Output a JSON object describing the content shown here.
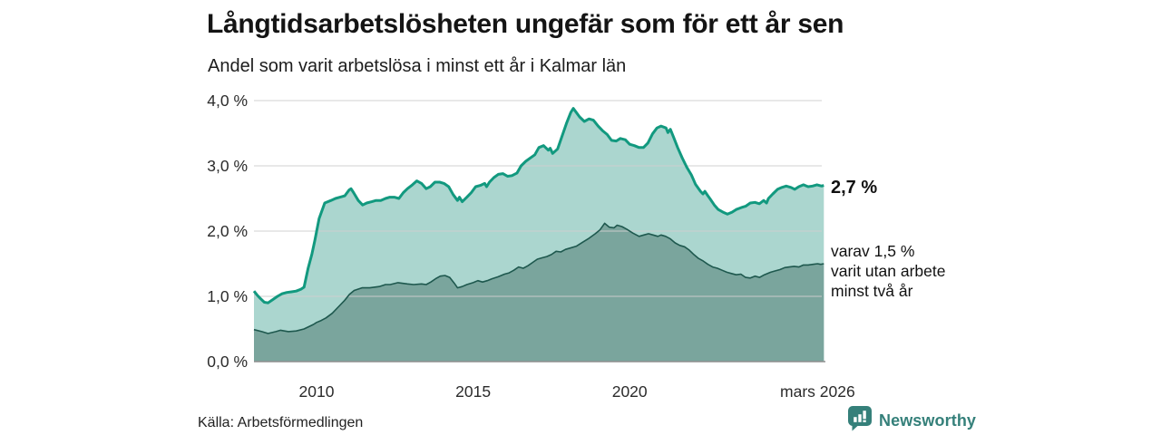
{
  "header": {
    "title": "Långtidsarbetslösheten ungefär som för ett år sen",
    "subtitle": "Andel som varit arbetslösa i minst ett år i Kalmar län"
  },
  "chart_data": {
    "type": "area",
    "unit": "%",
    "x_domain": [
      2008.0,
      2026.25
    ],
    "y_domain": [
      0,
      4
    ],
    "grid": true,
    "y_ticks": [
      {
        "v": 0,
        "label": "0,0 %"
      },
      {
        "v": 1,
        "label": "1,0 %"
      },
      {
        "v": 2,
        "label": "2,0 %"
      },
      {
        "v": 3,
        "label": "3,0 %"
      },
      {
        "v": 4,
        "label": "4,0 %"
      }
    ],
    "x_ticks": [
      {
        "x": 2010.0,
        "label": "2010"
      },
      {
        "x": 2015.0,
        "label": "2015"
      },
      {
        "x": 2020.0,
        "label": "2020"
      },
      {
        "x": 2026.0,
        "label": "mars 2026"
      }
    ],
    "series": [
      {
        "name": "Andel som varit arbetslösa i minst ett år",
        "line_color": "#12997f",
        "fill_color": "#abd6cf",
        "line_width": 3,
        "last_value_label": "2,7 %",
        "points": [
          [
            2008.0,
            1.08
          ],
          [
            2008.1,
            1.02
          ],
          [
            2008.2,
            0.97
          ],
          [
            2008.33,
            0.91
          ],
          [
            2008.45,
            0.9
          ],
          [
            2008.6,
            0.95
          ],
          [
            2008.75,
            1.0
          ],
          [
            2008.9,
            1.04
          ],
          [
            2009.05,
            1.06
          ],
          [
            2009.2,
            1.07
          ],
          [
            2009.35,
            1.08
          ],
          [
            2009.5,
            1.11
          ],
          [
            2009.6,
            1.14
          ],
          [
            2009.73,
            1.43
          ],
          [
            2009.85,
            1.65
          ],
          [
            2009.94,
            1.85
          ],
          [
            2010.08,
            2.19
          ],
          [
            2010.26,
            2.43
          ],
          [
            2010.46,
            2.47
          ],
          [
            2010.6,
            2.5
          ],
          [
            2010.75,
            2.52
          ],
          [
            2010.9,
            2.54
          ],
          [
            2011.04,
            2.63
          ],
          [
            2011.1,
            2.65
          ],
          [
            2011.18,
            2.59
          ],
          [
            2011.33,
            2.47
          ],
          [
            2011.47,
            2.4
          ],
          [
            2011.6,
            2.43
          ],
          [
            2011.76,
            2.45
          ],
          [
            2011.9,
            2.47
          ],
          [
            2012.05,
            2.47
          ],
          [
            2012.2,
            2.5
          ],
          [
            2012.34,
            2.52
          ],
          [
            2012.48,
            2.52
          ],
          [
            2012.63,
            2.5
          ],
          [
            2012.77,
            2.59
          ],
          [
            2012.9,
            2.65
          ],
          [
            2013.06,
            2.71
          ],
          [
            2013.2,
            2.77
          ],
          [
            2013.35,
            2.73
          ],
          [
            2013.5,
            2.65
          ],
          [
            2013.63,
            2.68
          ],
          [
            2013.78,
            2.75
          ],
          [
            2013.93,
            2.75
          ],
          [
            2014.07,
            2.73
          ],
          [
            2014.22,
            2.68
          ],
          [
            2014.36,
            2.56
          ],
          [
            2014.5,
            2.47
          ],
          [
            2014.56,
            2.52
          ],
          [
            2014.65,
            2.45
          ],
          [
            2014.8,
            2.52
          ],
          [
            2014.94,
            2.59
          ],
          [
            2015.08,
            2.68
          ],
          [
            2015.23,
            2.7
          ],
          [
            2015.37,
            2.73
          ],
          [
            2015.43,
            2.68
          ],
          [
            2015.52,
            2.75
          ],
          [
            2015.66,
            2.82
          ],
          [
            2015.8,
            2.87
          ],
          [
            2015.95,
            2.88
          ],
          [
            2016.1,
            2.84
          ],
          [
            2016.24,
            2.85
          ],
          [
            2016.4,
            2.89
          ],
          [
            2016.53,
            3.0
          ],
          [
            2016.68,
            3.07
          ],
          [
            2016.82,
            3.12
          ],
          [
            2016.97,
            3.17
          ],
          [
            2017.1,
            3.28
          ],
          [
            2017.25,
            3.31
          ],
          [
            2017.4,
            3.24
          ],
          [
            2017.46,
            3.27
          ],
          [
            2017.54,
            3.19
          ],
          [
            2017.7,
            3.26
          ],
          [
            2017.83,
            3.44
          ],
          [
            2017.98,
            3.65
          ],
          [
            2018.12,
            3.82
          ],
          [
            2018.2,
            3.88
          ],
          [
            2018.4,
            3.75
          ],
          [
            2018.55,
            3.68
          ],
          [
            2018.7,
            3.72
          ],
          [
            2018.84,
            3.7
          ],
          [
            2018.99,
            3.61
          ],
          [
            2019.13,
            3.54
          ],
          [
            2019.28,
            3.48
          ],
          [
            2019.42,
            3.39
          ],
          [
            2019.57,
            3.38
          ],
          [
            2019.7,
            3.42
          ],
          [
            2019.86,
            3.4
          ],
          [
            2020.0,
            3.33
          ],
          [
            2020.15,
            3.31
          ],
          [
            2020.3,
            3.28
          ],
          [
            2020.44,
            3.28
          ],
          [
            2020.58,
            3.35
          ],
          [
            2020.73,
            3.49
          ],
          [
            2020.87,
            3.58
          ],
          [
            2021.0,
            3.61
          ],
          [
            2021.16,
            3.58
          ],
          [
            2021.22,
            3.51
          ],
          [
            2021.3,
            3.56
          ],
          [
            2021.4,
            3.44
          ],
          [
            2021.53,
            3.28
          ],
          [
            2021.68,
            3.12
          ],
          [
            2021.82,
            2.98
          ],
          [
            2021.97,
            2.86
          ],
          [
            2022.1,
            2.72
          ],
          [
            2022.26,
            2.61
          ],
          [
            2022.34,
            2.57
          ],
          [
            2022.4,
            2.61
          ],
          [
            2022.5,
            2.54
          ],
          [
            2022.56,
            2.5
          ],
          [
            2022.7,
            2.4
          ],
          [
            2022.83,
            2.33
          ],
          [
            2022.98,
            2.29
          ],
          [
            2023.12,
            2.26
          ],
          [
            2023.27,
            2.29
          ],
          [
            2023.4,
            2.33
          ],
          [
            2023.56,
            2.36
          ],
          [
            2023.7,
            2.38
          ],
          [
            2023.85,
            2.43
          ],
          [
            2024.0,
            2.44
          ],
          [
            2024.14,
            2.42
          ],
          [
            2024.28,
            2.47
          ],
          [
            2024.37,
            2.43
          ],
          [
            2024.43,
            2.5
          ],
          [
            2024.57,
            2.57
          ],
          [
            2024.72,
            2.64
          ],
          [
            2024.86,
            2.67
          ],
          [
            2025.0,
            2.69
          ],
          [
            2025.15,
            2.67
          ],
          [
            2025.27,
            2.64
          ],
          [
            2025.4,
            2.68
          ],
          [
            2025.55,
            2.71
          ],
          [
            2025.7,
            2.68
          ],
          [
            2025.84,
            2.69
          ],
          [
            2025.98,
            2.71
          ],
          [
            2026.13,
            2.69
          ],
          [
            2026.2,
            2.7
          ]
        ]
      },
      {
        "name": "varav utan arbete minst två år",
        "line_color": "#1e584e",
        "fill_color": "#7aa59d",
        "line_width": 1.6,
        "last_value_label": "1,5 %",
        "points": [
          [
            2008.0,
            0.49
          ],
          [
            2008.25,
            0.46
          ],
          [
            2008.45,
            0.43
          ],
          [
            2008.7,
            0.46
          ],
          [
            2008.85,
            0.48
          ],
          [
            2009.1,
            0.46
          ],
          [
            2009.35,
            0.47
          ],
          [
            2009.6,
            0.5
          ],
          [
            2009.9,
            0.57
          ],
          [
            2010.0,
            0.6
          ],
          [
            2010.15,
            0.63
          ],
          [
            2010.3,
            0.67
          ],
          [
            2010.5,
            0.74
          ],
          [
            2010.7,
            0.84
          ],
          [
            2010.9,
            0.94
          ],
          [
            2011.05,
            1.03
          ],
          [
            2011.2,
            1.09
          ],
          [
            2011.45,
            1.13
          ],
          [
            2011.7,
            1.13
          ],
          [
            2012.0,
            1.15
          ],
          [
            2012.2,
            1.18
          ],
          [
            2012.35,
            1.18
          ],
          [
            2012.6,
            1.21
          ],
          [
            2012.9,
            1.19
          ],
          [
            2013.1,
            1.18
          ],
          [
            2013.35,
            1.19
          ],
          [
            2013.5,
            1.18
          ],
          [
            2013.65,
            1.22
          ],
          [
            2013.8,
            1.27
          ],
          [
            2013.95,
            1.31
          ],
          [
            2014.1,
            1.32
          ],
          [
            2014.25,
            1.29
          ],
          [
            2014.4,
            1.2
          ],
          [
            2014.5,
            1.13
          ],
          [
            2014.65,
            1.15
          ],
          [
            2014.8,
            1.18
          ],
          [
            2015.0,
            1.21
          ],
          [
            2015.15,
            1.24
          ],
          [
            2015.3,
            1.22
          ],
          [
            2015.45,
            1.24
          ],
          [
            2015.6,
            1.27
          ],
          [
            2015.8,
            1.3
          ],
          [
            2016.0,
            1.34
          ],
          [
            2016.15,
            1.36
          ],
          [
            2016.3,
            1.4
          ],
          [
            2016.45,
            1.45
          ],
          [
            2016.6,
            1.43
          ],
          [
            2016.75,
            1.47
          ],
          [
            2016.9,
            1.52
          ],
          [
            2017.05,
            1.57
          ],
          [
            2017.2,
            1.59
          ],
          [
            2017.35,
            1.61
          ],
          [
            2017.5,
            1.64
          ],
          [
            2017.65,
            1.69
          ],
          [
            2017.8,
            1.68
          ],
          [
            2017.95,
            1.72
          ],
          [
            2018.1,
            1.74
          ],
          [
            2018.3,
            1.77
          ],
          [
            2018.5,
            1.83
          ],
          [
            2018.7,
            1.89
          ],
          [
            2018.9,
            1.96
          ],
          [
            2019.05,
            2.02
          ],
          [
            2019.2,
            2.12
          ],
          [
            2019.35,
            2.06
          ],
          [
            2019.5,
            2.05
          ],
          [
            2019.6,
            2.09
          ],
          [
            2019.75,
            2.07
          ],
          [
            2019.9,
            2.03
          ],
          [
            2020.1,
            1.97
          ],
          [
            2020.3,
            1.92
          ],
          [
            2020.45,
            1.94
          ],
          [
            2020.6,
            1.96
          ],
          [
            2020.75,
            1.94
          ],
          [
            2020.9,
            1.92
          ],
          [
            2021.0,
            1.94
          ],
          [
            2021.15,
            1.92
          ],
          [
            2021.3,
            1.88
          ],
          [
            2021.45,
            1.82
          ],
          [
            2021.6,
            1.78
          ],
          [
            2021.75,
            1.76
          ],
          [
            2021.9,
            1.71
          ],
          [
            2022.05,
            1.64
          ],
          [
            2022.2,
            1.58
          ],
          [
            2022.35,
            1.54
          ],
          [
            2022.5,
            1.49
          ],
          [
            2022.65,
            1.45
          ],
          [
            2022.8,
            1.43
          ],
          [
            2022.95,
            1.4
          ],
          [
            2023.1,
            1.37
          ],
          [
            2023.25,
            1.35
          ],
          [
            2023.4,
            1.33
          ],
          [
            2023.55,
            1.34
          ],
          [
            2023.7,
            1.29
          ],
          [
            2023.85,
            1.28
          ],
          [
            2024.0,
            1.31
          ],
          [
            2024.15,
            1.29
          ],
          [
            2024.3,
            1.33
          ],
          [
            2024.5,
            1.37
          ],
          [
            2024.65,
            1.39
          ],
          [
            2024.8,
            1.41
          ],
          [
            2024.95,
            1.44
          ],
          [
            2025.1,
            1.45
          ],
          [
            2025.25,
            1.46
          ],
          [
            2025.4,
            1.45
          ],
          [
            2025.55,
            1.48
          ],
          [
            2025.7,
            1.48
          ],
          [
            2025.85,
            1.49
          ],
          [
            2026.0,
            1.5
          ],
          [
            2026.1,
            1.49
          ],
          [
            2026.2,
            1.5
          ]
        ]
      }
    ],
    "annotations": {
      "latest_total": "2,7 %",
      "latest_two_year_lines": [
        "varav 1,5 %",
        "varit utan arbete",
        "minst två år"
      ]
    },
    "colors": {
      "grid": "#cfcfcf",
      "axis_baseline": "#8f8f8f",
      "tick_text": "#2b2b2b"
    }
  },
  "footer": {
    "source": "Källa: Arbetsförmedlingen",
    "brand": "Newsworthy",
    "brand_color": "#35807a"
  }
}
